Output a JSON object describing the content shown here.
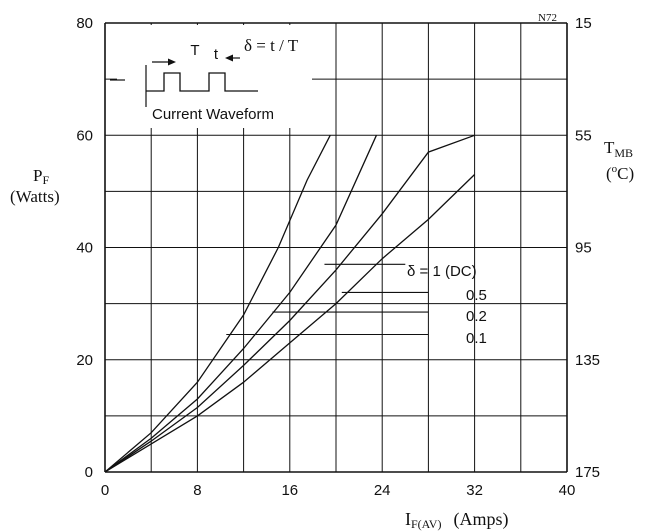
{
  "chart_data": {
    "type": "line",
    "code": "N72",
    "x": {
      "label_main": "I",
      "label_sub": "F(AV)",
      "label_unit": "(Amps)",
      "range": [
        0,
        40
      ],
      "ticks": [
        "0",
        "8",
        "16",
        "24",
        "32",
        "40"
      ]
    },
    "y_left": {
      "label_main": "P",
      "label_sub": "F",
      "label_unit": "(Watts)",
      "range": [
        0,
        80
      ],
      "ticks": [
        "0",
        "20",
        "40",
        "60",
        "80"
      ]
    },
    "y_right": {
      "label_main": "T",
      "label_sub": "MB",
      "label_unit_pre": "(",
      "label_unit_sup": "o",
      "label_unit_post": "C)",
      "ticks": [
        "175",
        "135",
        "95",
        "55",
        "15"
      ]
    },
    "grid": true,
    "inset": {
      "caption": "Current  Waveform",
      "T_label": "T",
      "t_label": "t",
      "formula": "δ = t / T"
    },
    "series": [
      {
        "name": "δ = 1 (DC)",
        "points": [
          [
            0,
            0
          ],
          [
            4,
            5
          ],
          [
            8,
            10
          ],
          [
            12,
            16
          ],
          [
            16,
            23
          ],
          [
            20,
            30
          ],
          [
            24,
            38
          ],
          [
            28,
            45
          ],
          [
            32,
            53
          ]
        ]
      },
      {
        "name": "0.5",
        "points": [
          [
            0,
            0
          ],
          [
            4,
            5.5
          ],
          [
            8,
            11.5
          ],
          [
            12,
            19
          ],
          [
            16,
            27
          ],
          [
            20,
            36
          ],
          [
            24,
            46
          ],
          [
            28,
            57
          ],
          [
            32,
            60
          ]
        ]
      },
      {
        "name": "0.2",
        "points": [
          [
            0,
            0
          ],
          [
            4,
            6
          ],
          [
            8,
            13
          ],
          [
            12,
            22
          ],
          [
            16,
            32
          ],
          [
            20,
            44
          ],
          [
            23.5,
            60
          ]
        ]
      },
      {
        "name": "0.1",
        "points": [
          [
            0,
            0
          ],
          [
            4,
            7
          ],
          [
            8,
            16
          ],
          [
            12,
            28
          ],
          [
            15,
            40
          ],
          [
            17.5,
            52
          ],
          [
            19.5,
            60
          ]
        ]
      }
    ]
  }
}
